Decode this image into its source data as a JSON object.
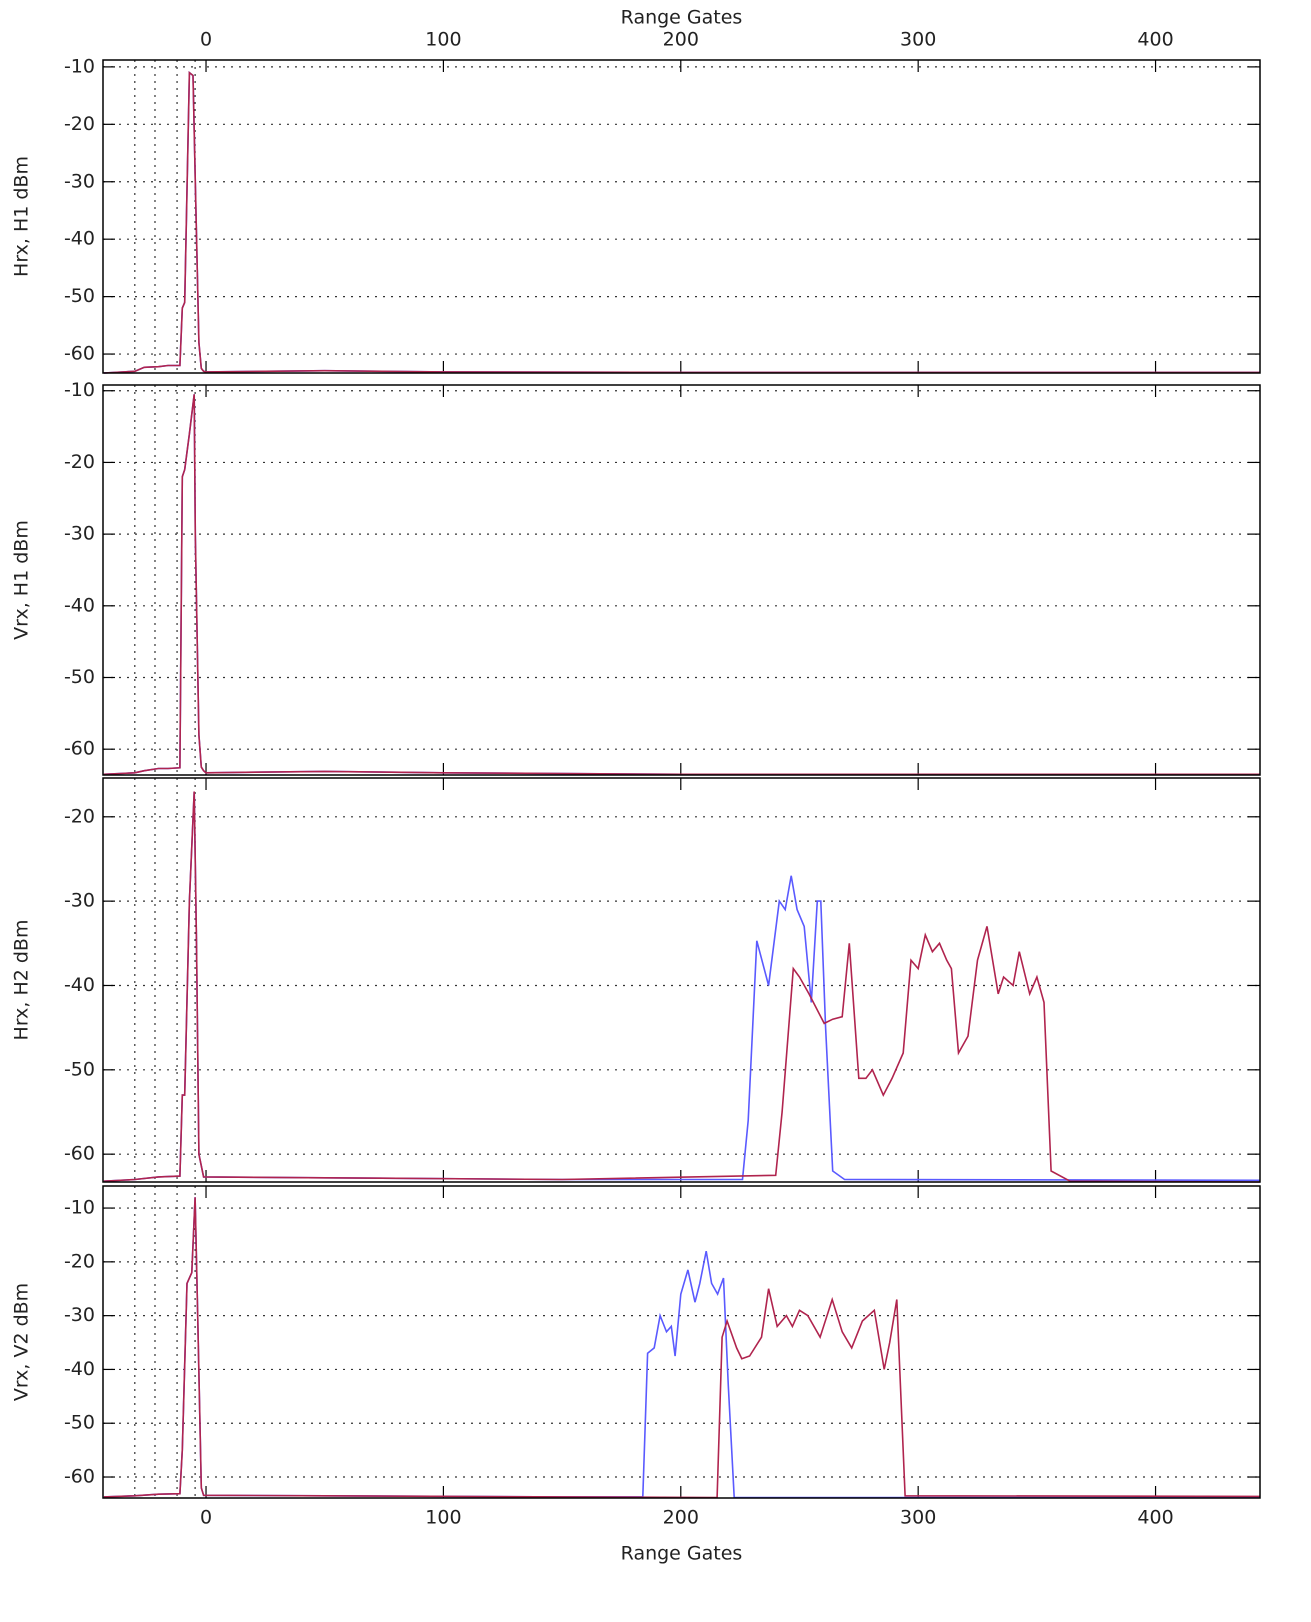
{
  "chart_data": [
    {
      "type": "line",
      "x_label_top": "Range Gates",
      "ylabel": "Hrx, H1 dBm",
      "xlim": [
        -43.4,
        444
      ],
      "xticks": [
        0,
        100,
        200,
        300,
        400
      ],
      "ylim": [
        -63.3,
        -8.8
      ],
      "yticks": [
        -10,
        -20,
        -30,
        -40,
        -50,
        -60
      ],
      "grid": true,
      "tick_labels_x": "top",
      "vlines": [
        -30,
        -21.5,
        -12.2,
        -4.6
      ],
      "series": [
        {
          "color": "#5a5aff",
          "x": [
            -43,
            -30,
            -26,
            -20,
            -16,
            -11,
            -10,
            -9,
            -7,
            -5.5,
            -4.5,
            -3,
            -2,
            -1,
            0,
            50,
            100,
            200,
            300,
            444
          ],
          "values": [
            -63.3,
            -63,
            -62.3,
            -62.2,
            -62,
            -62,
            -52,
            -51,
            -11,
            -11.5,
            -30,
            -58,
            -62.5,
            -63,
            -63.1,
            -62.9,
            -63.1,
            -63.2,
            -63.2,
            -63.2
          ]
        },
        {
          "color": "#b0244e",
          "x": [
            -43,
            -30,
            -26,
            -20,
            -16,
            -11,
            -10,
            -9,
            -7,
            -5.5,
            -4.5,
            -3,
            -2,
            -1,
            0,
            50,
            100,
            200,
            300,
            444
          ],
          "values": [
            -63.3,
            -63,
            -62.3,
            -62.2,
            -62,
            -62,
            -52,
            -51,
            -11,
            -11.5,
            -30,
            -58,
            -62.5,
            -63,
            -63.1,
            -62.9,
            -63.1,
            -63.2,
            -63.2,
            -63.2
          ]
        }
      ]
    },
    {
      "type": "line",
      "ylabel": "Vrx, H1 dBm",
      "xlim": [
        -43.4,
        444
      ],
      "xticks": [
        0,
        100,
        200,
        300,
        400
      ],
      "ylim": [
        -63.6,
        -9.2
      ],
      "yticks": [
        -10,
        -20,
        -30,
        -40,
        -50,
        -60
      ],
      "grid": true,
      "vlines": [
        -30,
        -21.5,
        -12.2,
        -4.6
      ],
      "series": [
        {
          "color": "#5a5aff",
          "x": [
            -43,
            -30,
            -26,
            -20,
            -16,
            -11,
            -10,
            -9,
            -7,
            -5,
            -4.5,
            -3,
            -2,
            -1,
            0,
            50,
            100,
            200,
            300,
            444
          ],
          "values": [
            -63.5,
            -63.3,
            -63,
            -62.7,
            -62.7,
            -62.6,
            -22,
            -21,
            -16,
            -10.5,
            -30,
            -58,
            -62.5,
            -63,
            -63.3,
            -63.1,
            -63.3,
            -63.5,
            -63.5,
            -63.5
          ]
        },
        {
          "color": "#b0244e",
          "x": [
            -43,
            -30,
            -26,
            -20,
            -16,
            -11,
            -10,
            -9,
            -7,
            -5,
            -4.5,
            -3,
            -2,
            -1,
            0,
            50,
            100,
            200,
            300,
            444
          ],
          "values": [
            -63.5,
            -63.3,
            -63,
            -62.7,
            -62.7,
            -62.6,
            -22,
            -21,
            -16,
            -10.5,
            -30,
            -58,
            -62.5,
            -63,
            -63.3,
            -63.1,
            -63.3,
            -63.5,
            -63.5,
            -63.5
          ]
        }
      ]
    },
    {
      "type": "line",
      "ylabel": "Hrx, H2 dBm",
      "xlim": [
        -43.4,
        444
      ],
      "xticks": [
        0,
        100,
        200,
        300,
        400
      ],
      "ylim": [
        -63.3,
        -15.4
      ],
      "yticks": [
        -20,
        -30,
        -40,
        -50,
        -60
      ],
      "grid": true,
      "vlines": [
        -30,
        -21.5,
        -12.2,
        -4.6
      ],
      "series": [
        {
          "color": "#5a5aff",
          "x": [
            -43,
            -30,
            -20,
            -11,
            -10,
            -9,
            -7,
            -5,
            -4,
            -3,
            -1,
            50,
            150,
            226,
            228.4,
            232,
            237,
            241.5,
            244,
            246.5,
            249,
            252,
            255,
            257.5,
            259,
            261,
            264,
            269,
            444
          ],
          "values": [
            -63.2,
            -63,
            -62.7,
            -62.6,
            -53,
            -53,
            -30,
            -17,
            -35,
            -60,
            -62.7,
            -62.8,
            -63,
            -63,
            -56,
            -34.7,
            -40,
            -30,
            -31,
            -27,
            -31,
            -33,
            -42,
            -30,
            -30,
            -45,
            -62,
            -63,
            -63.1
          ]
        },
        {
          "color": "#b0244e",
          "x": [
            -43,
            -30,
            -20,
            -11,
            -10,
            -9,
            -7,
            -5,
            -4,
            -3,
            -1,
            50,
            150,
            240,
            242.7,
            247.4,
            250,
            254,
            260.4,
            264,
            268,
            271,
            275,
            278,
            280.7,
            285.3,
            289,
            293.7,
            297,
            300,
            303,
            306,
            309,
            312,
            314,
            317,
            321,
            325,
            329,
            333.7,
            336,
            340,
            342.6,
            347,
            350,
            353,
            356,
            364,
            444
          ],
          "values": [
            -63.2,
            -63,
            -62.7,
            -62.6,
            -53,
            -53,
            -30,
            -17,
            -35,
            -60,
            -62.7,
            -62.8,
            -63,
            -62.5,
            -55,
            -38,
            -39,
            -41,
            -44.5,
            -44,
            -43.7,
            -35,
            -51,
            -51,
            -50,
            -53,
            -51,
            -48,
            -37,
            -38,
            -34,
            -36,
            -35,
            -37,
            -38,
            -48,
            -46,
            -37,
            -33,
            -41,
            -39,
            -40,
            -36,
            -41,
            -39,
            -42,
            -62,
            -63.2,
            -63.3
          ]
        }
      ]
    },
    {
      "type": "line",
      "x_label": "Range Gates",
      "ylabel": "Vrx, V2 dBm",
      "xlim": [
        -43.4,
        444
      ],
      "xticks": [
        0,
        100,
        200,
        300,
        400
      ],
      "ylim": [
        -63.9,
        -5.9
      ],
      "yticks": [
        -10,
        -20,
        -30,
        -40,
        -50,
        -60
      ],
      "grid": true,
      "tick_labels_x": "bottom",
      "vlines": [
        -30,
        -21.5,
        -12.2,
        -4.6
      ],
      "series": [
        {
          "color": "#5a5aff",
          "x": [
            -43,
            -30,
            -20,
            -11,
            -10,
            -8,
            -6,
            -4.6,
            -3.5,
            -2,
            -1,
            50,
            150,
            184,
            186,
            188.8,
            191.3,
            194,
            196,
            197.6,
            200,
            203,
            206,
            208,
            210.7,
            213,
            215.5,
            218,
            220,
            222.5,
            444
          ],
          "values": [
            -63.7,
            -63.5,
            -63.2,
            -63.1,
            -55,
            -24,
            -22,
            -8,
            -30,
            -62,
            -63.4,
            -63.5,
            -63.7,
            -63.7,
            -37,
            -36,
            -30,
            -33,
            -32,
            -37.5,
            -26,
            -21.5,
            -27.5,
            -24,
            -18,
            -24,
            -26,
            -23,
            -43,
            -63.8,
            -63.8
          ]
        },
        {
          "color": "#b0244e",
          "x": [
            -43,
            -30,
            -20,
            -11,
            -10,
            -8,
            -6,
            -4.6,
            -3.5,
            -2,
            -1,
            50,
            150,
            215.3,
            217.4,
            219.5,
            223.5,
            225.7,
            229,
            234,
            237,
            240.6,
            244.5,
            247,
            250,
            253.5,
            258.7,
            263.8,
            268,
            272,
            276.5,
            281.5,
            285.7,
            288,
            291,
            294.5,
            444
          ],
          "values": [
            -63.7,
            -63.5,
            -63.2,
            -63.1,
            -55,
            -24,
            -22,
            -8,
            -30,
            -62,
            -63.4,
            -63.5,
            -63.7,
            -63.8,
            -34,
            -31,
            -36,
            -38,
            -37.5,
            -34,
            -25,
            -32,
            -30,
            -32,
            -29,
            -30,
            -34,
            -27,
            -33,
            -36,
            -31,
            -29,
            -40,
            -35,
            -27,
            -63.5,
            -63.6
          ]
        }
      ]
    }
  ]
}
